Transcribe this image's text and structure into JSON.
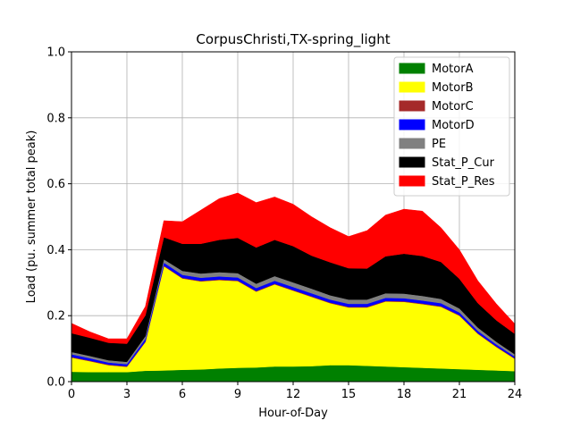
{
  "chart_data": {
    "type": "area",
    "stacked": true,
    "title": "CorpusChristi,TX-spring_light",
    "xlabel": "Hour-of-Day",
    "ylabel": "Load (pu. summer total peak)",
    "xlim": [
      0,
      24
    ],
    "ylim": [
      0,
      1.0
    ],
    "x_ticks": [
      0,
      3,
      6,
      9,
      12,
      15,
      18,
      21,
      24
    ],
    "y_ticks": [
      0.0,
      0.2,
      0.4,
      0.6,
      0.8,
      1.0
    ],
    "grid": true,
    "legend_position": "top-right",
    "x": [
      0,
      1,
      2,
      3,
      4,
      5,
      6,
      7,
      8,
      9,
      10,
      11,
      12,
      13,
      14,
      15,
      16,
      17,
      18,
      19,
      20,
      21,
      22,
      23,
      24
    ],
    "series": [
      {
        "name": "MotorA",
        "color": "#008000",
        "values": [
          0.03,
          0.029,
          0.029,
          0.029,
          0.033,
          0.034,
          0.036,
          0.037,
          0.04,
          0.042,
          0.043,
          0.046,
          0.046,
          0.047,
          0.05,
          0.05,
          0.048,
          0.046,
          0.044,
          0.042,
          0.04,
          0.038,
          0.036,
          0.034,
          0.032
        ]
      },
      {
        "name": "MotorB",
        "color": "#ffff00",
        "values": [
          0.043,
          0.033,
          0.021,
          0.016,
          0.087,
          0.316,
          0.277,
          0.267,
          0.268,
          0.263,
          0.23,
          0.249,
          0.23,
          0.21,
          0.188,
          0.175,
          0.177,
          0.197,
          0.198,
          0.193,
          0.187,
          0.162,
          0.109,
          0.071,
          0.037
        ]
      },
      {
        "name": "MotorC",
        "color": "#a52a2a",
        "values": [
          0.002,
          0.002,
          0.002,
          0.002,
          0.002,
          0.002,
          0.002,
          0.002,
          0.002,
          0.002,
          0.002,
          0.002,
          0.002,
          0.002,
          0.002,
          0.002,
          0.002,
          0.002,
          0.002,
          0.002,
          0.002,
          0.002,
          0.002,
          0.002,
          0.002
        ]
      },
      {
        "name": "MotorD",
        "color": "#0000ff",
        "values": [
          0.008,
          0.007,
          0.006,
          0.006,
          0.008,
          0.009,
          0.009,
          0.009,
          0.009,
          0.009,
          0.009,
          0.009,
          0.009,
          0.009,
          0.009,
          0.009,
          0.009,
          0.009,
          0.009,
          0.009,
          0.009,
          0.008,
          0.007,
          0.006,
          0.005
        ]
      },
      {
        "name": "PE",
        "color": "#808080",
        "values": [
          0.007,
          0.007,
          0.007,
          0.007,
          0.008,
          0.01,
          0.012,
          0.013,
          0.013,
          0.013,
          0.013,
          0.014,
          0.014,
          0.014,
          0.013,
          0.013,
          0.013,
          0.014,
          0.014,
          0.014,
          0.013,
          0.012,
          0.01,
          0.008,
          0.007
        ]
      },
      {
        "name": "Stat_P_Cur",
        "color": "#000000",
        "values": [
          0.057,
          0.055,
          0.053,
          0.055,
          0.063,
          0.067,
          0.082,
          0.09,
          0.098,
          0.107,
          0.11,
          0.11,
          0.11,
          0.1,
          0.1,
          0.095,
          0.094,
          0.112,
          0.121,
          0.121,
          0.112,
          0.09,
          0.074,
          0.065,
          0.062
        ]
      },
      {
        "name": "Stat_P_Res",
        "color": "#ff0000",
        "values": [
          0.03,
          0.018,
          0.012,
          0.015,
          0.027,
          0.05,
          0.067,
          0.102,
          0.125,
          0.136,
          0.136,
          0.13,
          0.127,
          0.118,
          0.105,
          0.096,
          0.115,
          0.125,
          0.135,
          0.136,
          0.104,
          0.088,
          0.068,
          0.05,
          0.03
        ]
      }
    ]
  }
}
